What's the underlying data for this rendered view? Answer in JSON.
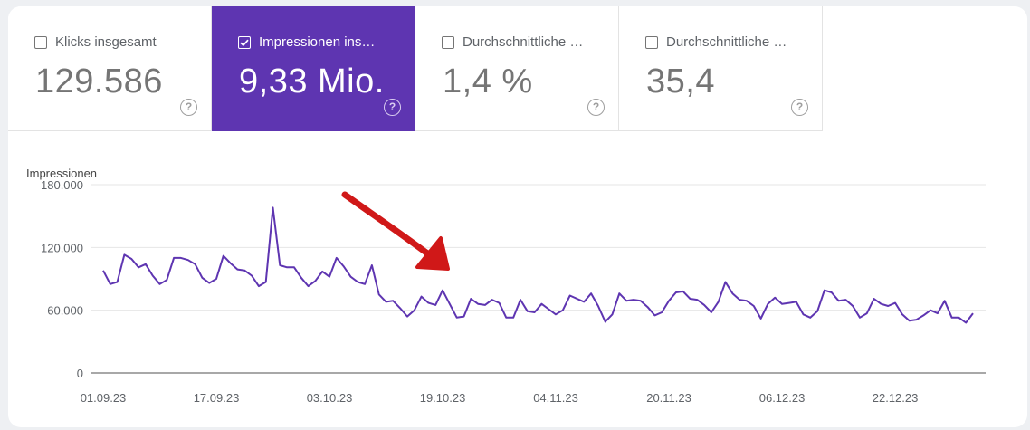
{
  "metrics": [
    {
      "label": "Klicks insgesamt",
      "value": "129.586",
      "selected": false,
      "help": "?"
    },
    {
      "label": "Impressionen ins…",
      "value": "9,33 Mio.",
      "selected": true,
      "help": "?"
    },
    {
      "label": "Durchschnittliche …",
      "value": "1,4 %",
      "selected": false,
      "help": "?"
    },
    {
      "label": "Durchschnittliche …",
      "value": "35,4",
      "selected": false,
      "help": "?"
    }
  ],
  "colors": {
    "accent": "#5e35b1",
    "line": "#5e35b1",
    "arrow": "#d01818"
  },
  "chart_data": {
    "type": "line",
    "ylabel": "Impressionen",
    "ylim": [
      0,
      180000
    ],
    "yticks": [
      0,
      60000,
      120000,
      180000
    ],
    "ytick_labels": [
      "0",
      "60.000",
      "120.000",
      "180.000"
    ],
    "xtick_labels": [
      "01.09.23",
      "17.09.23",
      "03.10.23",
      "19.10.23",
      "04.11.23",
      "20.11.23",
      "06.12.23",
      "22.12.23"
    ],
    "x_start": "01.09.23",
    "x_end": "30.12.23",
    "grid": true,
    "annotation": "red-arrow-down-right",
    "series": [
      {
        "values": [
          98000,
          85000,
          87000,
          113000,
          109000,
          101000,
          104000,
          93000,
          85000,
          89000,
          110000,
          110000,
          108000,
          104000,
          91000,
          86000,
          90000,
          112000,
          105000,
          99000,
          98000,
          93000,
          83000,
          87000,
          158000,
          103000,
          101000,
          101000,
          91000,
          83000,
          88000,
          97000,
          92000,
          110000,
          102000,
          92000,
          87000,
          85000,
          103000,
          75000,
          68000,
          69000,
          62000,
          54000,
          60000,
          73000,
          67000,
          65000,
          79000,
          66000,
          53000,
          54000,
          71000,
          66000,
          65000,
          70000,
          67000,
          53000,
          53000,
          70000,
          59000,
          58000,
          66000,
          61000,
          56000,
          60000,
          74000,
          71000,
          68000,
          76000,
          64000,
          49000,
          56000,
          76000,
          69000,
          70000,
          69000,
          63000,
          55000,
          58000,
          69000,
          77000,
          78000,
          71000,
          70000,
          65000,
          58000,
          68000,
          87000,
          76000,
          70000,
          69000,
          64000,
          52000,
          66000,
          72000,
          66000,
          67000,
          68000,
          56000,
          53000,
          59000,
          79000,
          77000,
          69000,
          70000,
          64000,
          53000,
          57000,
          71000,
          66000,
          64000,
          67000,
          56000,
          50000,
          51000,
          55000,
          60000,
          57000,
          69000,
          53000,
          53000,
          48000,
          57000
        ]
      }
    ]
  }
}
